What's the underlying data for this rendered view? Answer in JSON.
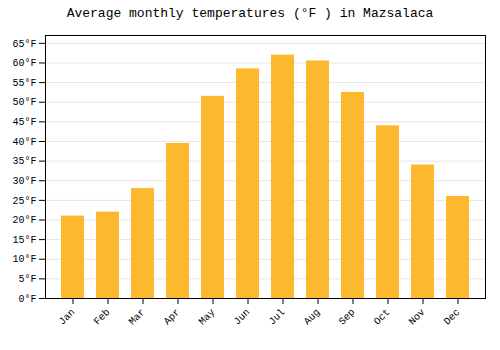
{
  "chart_data": {
    "type": "bar",
    "title": "Average monthly temperatures (°F ) in Mazsalaca",
    "categories": [
      "Jan",
      "Feb",
      "Mar",
      "Apr",
      "May",
      "Jun",
      "Jul",
      "Aug",
      "Sep",
      "Oct",
      "Nov",
      "Dec"
    ],
    "values": [
      21,
      22,
      28,
      39.5,
      51.5,
      58.5,
      62,
      60.5,
      52.5,
      44,
      34,
      26
    ],
    "color": "#FDB92E",
    "ylim": [
      0,
      67
    ],
    "yticks": [
      {
        "value": 0,
        "label": "0°F"
      },
      {
        "value": 5,
        "label": "5°F"
      },
      {
        "value": 10,
        "label": "10°F"
      },
      {
        "value": 15,
        "label": "15°F"
      },
      {
        "value": 20,
        "label": "20°F"
      },
      {
        "value": 25,
        "label": "25°F"
      },
      {
        "value": 30,
        "label": "30°F"
      },
      {
        "value": 35,
        "label": "35°F"
      },
      {
        "value": 40,
        "label": "40°F"
      },
      {
        "value": 45,
        "label": "45°F"
      },
      {
        "value": 50,
        "label": "50°F"
      },
      {
        "value": 55,
        "label": "55°F"
      },
      {
        "value": 60,
        "label": "60°F"
      },
      {
        "value": 65,
        "label": "65°F"
      }
    ],
    "grid": true
  }
}
